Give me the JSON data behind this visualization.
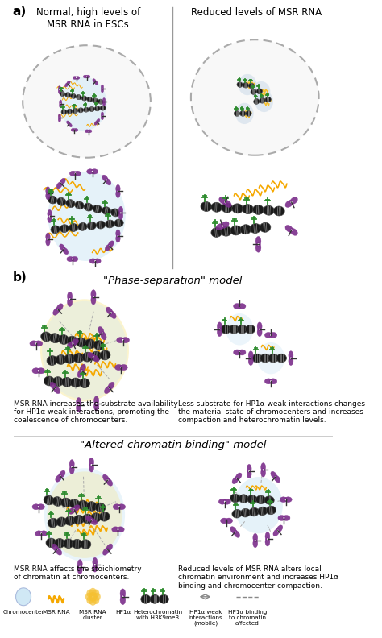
{
  "panel_a_left_title": "Normal, high levels of\nMSR RNA in ESCs",
  "panel_a_right_title": "Reduced levels of MSR RNA",
  "panel_b_title1": "\"Phase-separation\" model",
  "panel_b_title2": "\"Altered-chromatin binding\" model",
  "panel_a_label": "a)",
  "panel_b_label": "b)",
  "text_phase_left": "MSR RNA increases the substrate availability\nfor HP1α weak interactions, promoting the\ncoalescence of chromocenters.",
  "text_phase_right": "Less substrate for HP1α weak interactions changes\nthe material state of chromocenters and increases\ncompaction and heterochromatin levels.",
  "text_altered_left": "MSR RNA affects the stoichiometry\nof chromatin at chromocenters.",
  "text_altered_right": "Reduced levels of MSR RNA alters local\nchromatin environment and increases HP1α\nbinding and chromocenter compaction.",
  "colors": {
    "chromocenter_bg": "#d0e8f5",
    "msr_rna": "#f5a800",
    "hp1a_purple": "#7b2d8b",
    "hp1a_light": "#c060d0",
    "heterochromatin_green": "#2d8b2d",
    "nucleosome_dark": "#1a1a1a",
    "nucleosome_stripe": "#555555",
    "cell_fill": "#f8f8f8",
    "cell_border": "#999999",
    "divider": "#888888",
    "bg": "#ffffff"
  }
}
